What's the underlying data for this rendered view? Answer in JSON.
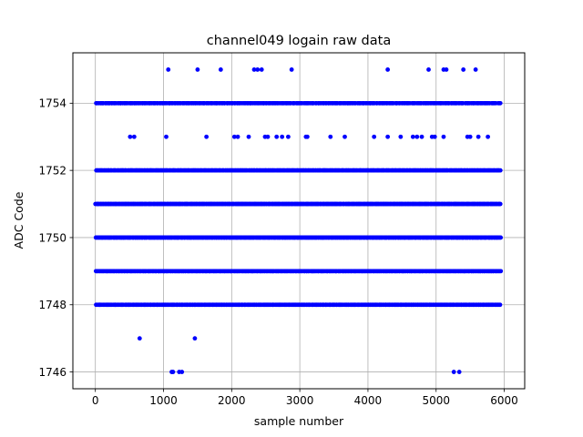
{
  "chart_data": {
    "type": "scatter",
    "title": "channel049 logain raw data",
    "xlabel": "sample number",
    "ylabel": "ADC Code",
    "xlim": [
      -330,
      6300
    ],
    "ylim": [
      1745.5,
      1755.5
    ],
    "xticks": [
      0,
      1000,
      2000,
      3000,
      4000,
      5000,
      6000
    ],
    "yticks": [
      1746,
      1748,
      1750,
      1752,
      1754
    ],
    "grid": true,
    "marker_color": "#0000ff",
    "dense_levels": [
      {
        "y": 1754,
        "x_range": [
          0,
          5950
        ],
        "sample_count": 320
      },
      {
        "y": 1752,
        "x_range": [
          0,
          5950
        ],
        "sample_count": 420
      },
      {
        "y": 1751,
        "x_range": [
          0,
          5950
        ],
        "sample_count": 460
      },
      {
        "y": 1750,
        "x_range": [
          0,
          5950
        ],
        "sample_count": 480
      },
      {
        "y": 1749,
        "x_range": [
          0,
          5950
        ],
        "sample_count": 440
      },
      {
        "y": 1748,
        "x_range": [
          0,
          5950
        ],
        "sample_count": 380
      }
    ],
    "sparse_points": [
      {
        "x": 1070,
        "y": 1755
      },
      {
        "x": 1500,
        "y": 1755
      },
      {
        "x": 1840,
        "y": 1755
      },
      {
        "x": 2330,
        "y": 1755
      },
      {
        "x": 2380,
        "y": 1755
      },
      {
        "x": 2440,
        "y": 1755
      },
      {
        "x": 2880,
        "y": 1755
      },
      {
        "x": 4290,
        "y": 1755
      },
      {
        "x": 4890,
        "y": 1755
      },
      {
        "x": 5110,
        "y": 1755
      },
      {
        "x": 5150,
        "y": 1755
      },
      {
        "x": 5400,
        "y": 1755
      },
      {
        "x": 5580,
        "y": 1755
      },
      {
        "x": 510,
        "y": 1753
      },
      {
        "x": 570,
        "y": 1753
      },
      {
        "x": 1040,
        "y": 1753
      },
      {
        "x": 1630,
        "y": 1753
      },
      {
        "x": 2040,
        "y": 1753
      },
      {
        "x": 2090,
        "y": 1753
      },
      {
        "x": 2250,
        "y": 1753
      },
      {
        "x": 2490,
        "y": 1753
      },
      {
        "x": 2530,
        "y": 1753
      },
      {
        "x": 2660,
        "y": 1753
      },
      {
        "x": 2740,
        "y": 1753
      },
      {
        "x": 2830,
        "y": 1753
      },
      {
        "x": 3090,
        "y": 1753
      },
      {
        "x": 3110,
        "y": 1753
      },
      {
        "x": 3450,
        "y": 1753
      },
      {
        "x": 3660,
        "y": 1753
      },
      {
        "x": 4090,
        "y": 1753
      },
      {
        "x": 4290,
        "y": 1753
      },
      {
        "x": 4480,
        "y": 1753
      },
      {
        "x": 4660,
        "y": 1753
      },
      {
        "x": 4720,
        "y": 1753
      },
      {
        "x": 4790,
        "y": 1753
      },
      {
        "x": 4940,
        "y": 1753
      },
      {
        "x": 4980,
        "y": 1753
      },
      {
        "x": 5110,
        "y": 1753
      },
      {
        "x": 5460,
        "y": 1753
      },
      {
        "x": 5500,
        "y": 1753
      },
      {
        "x": 5620,
        "y": 1753
      },
      {
        "x": 5760,
        "y": 1753
      },
      {
        "x": 650,
        "y": 1747
      },
      {
        "x": 1460,
        "y": 1747
      },
      {
        "x": 1120,
        "y": 1746
      },
      {
        "x": 1140,
        "y": 1746
      },
      {
        "x": 1230,
        "y": 1746
      },
      {
        "x": 1270,
        "y": 1746
      },
      {
        "x": 5260,
        "y": 1746
      },
      {
        "x": 5340,
        "y": 1746
      }
    ]
  }
}
